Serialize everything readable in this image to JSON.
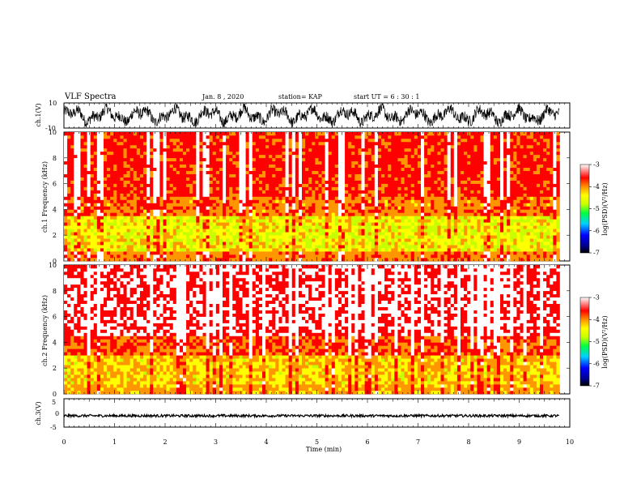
{
  "header": {
    "title": "VLF Spectra",
    "date": "Jan. 8 , 2020",
    "station": "station= KAP",
    "start": "start UT =  6 : 30 : 1"
  },
  "chart_data": [
    {
      "type": "line",
      "panel": "ch1_waveform",
      "ylabel": "ch.1(V)",
      "ylim": [
        -10,
        10
      ],
      "ytick_labels": [
        "10",
        "-10"
      ],
      "xlim": [
        0,
        10
      ],
      "description_series": "noisy oscillating voltage, amplitude mostly between -8 and 8 V"
    },
    {
      "type": "heatmap",
      "panel": "ch1_spectrogram",
      "ylabel": "ch.1 Frequency (kHz)",
      "ylim": [
        0,
        10
      ],
      "ytick_labels": [
        "0",
        "2",
        "4",
        "6",
        "8",
        "10"
      ],
      "xlim": [
        0,
        9.8
      ],
      "colorbar": {
        "label": "log(PSD)(V²/Hz)",
        "range": [
          -7,
          -3
        ],
        "tick_labels": [
          "-3",
          "-4",
          "-5",
          "-6",
          "-7"
        ]
      }
    },
    {
      "type": "heatmap",
      "panel": "ch2_spectrogram",
      "ylabel": "ch.2 Frequency (kHz)",
      "ylim": [
        0,
        10
      ],
      "ytick_labels": [
        "0",
        "2",
        "4",
        "6",
        "8",
        "10"
      ],
      "xlim": [
        0,
        9.8
      ],
      "colorbar": {
        "label": "log(PSD)(V²/Hz)",
        "range": [
          -7,
          -3
        ],
        "tick_labels": [
          "-3",
          "-4",
          "-5",
          "-6",
          "-7"
        ]
      }
    },
    {
      "type": "line",
      "panel": "ch3_waveform",
      "ylabel": "ch.3(V)",
      "ylim": [
        -5,
        5
      ],
      "ytick_labels": [
        "5",
        "0",
        "-5"
      ],
      "xlim": [
        0,
        10
      ],
      "description_series": "near-constant band around -1 V"
    }
  ],
  "xaxis": {
    "label": "Time (min)",
    "tick_labels": [
      "0",
      "1",
      "2",
      "3",
      "4",
      "5",
      "6",
      "7",
      "8",
      "9",
      "10"
    ]
  },
  "colors": {
    "cmap": [
      "#000080",
      "#0000ff",
      "#00c8ff",
      "#00ff00",
      "#c8ff00",
      "#ffff00",
      "#ff9600",
      "#ff0000",
      "#ffffff"
    ]
  }
}
